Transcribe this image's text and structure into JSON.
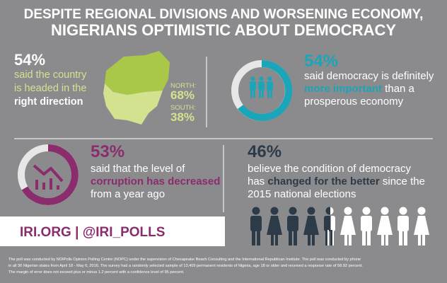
{
  "header": {
    "title_lines": [
      "DESPITE REGIONAL DIVISIONS AND WORSENING ECONOMY,",
      "NIGERIANS OPTIMISTIC ABOUT DEMOCRACY"
    ]
  },
  "panels": [
    {
      "stat": "54%",
      "lines": [
        [
          {
            "text": "said the country"
          }
        ],
        [
          {
            "text": "is headed in the"
          }
        ],
        [
          {
            "text": "right direction",
            "accent": true
          }
        ]
      ],
      "regions": [
        {
          "label": "NORTH:",
          "value": "68%"
        },
        {
          "label": "SOUTH:",
          "value": "38%"
        }
      ]
    },
    {
      "stat": "54%",
      "lines": [
        [
          {
            "text": "said democracy is definitely"
          }
        ],
        [
          {
            "text": "more important",
            "accent": true
          },
          {
            "text": " than a"
          }
        ],
        [
          {
            "text": "prosperous economy"
          }
        ]
      ]
    },
    {
      "stat": "53%",
      "lines": [
        [
          {
            "text": "said that the level of"
          }
        ],
        [
          {
            "text": "corruption has decreased",
            "accent": true
          }
        ],
        [
          {
            "text": "from a year ago"
          }
        ]
      ]
    },
    {
      "stat": "46%",
      "lines": [
        [
          {
            "text": "believe the condition of democracy"
          }
        ],
        [
          {
            "text": "has "
          },
          {
            "text": "changed for the better",
            "accent": true
          },
          {
            "text": " since the"
          }
        ],
        [
          {
            "text": "2015 national elections"
          }
        ]
      ]
    }
  ],
  "footer": {
    "links": "IRI.ORG | @IRI_POLLS",
    "note_lines": [
      "The poll was conducted by NOIPolls Opinion Polling Centre (NOPC) under the supervision of Chesapeake Beach Consulting and the International Republican Institute. The poll was conducted by phone",
      "in all 36 Nigerian states from April 18 - May 6, 2016. The survey had a randomly selected sample of 13,409 permanent residents of Nigeria, age 18 or older and received a response rate of 58.92 percent.",
      "The margin of error does not exceed plus or minus 1.2 percent with a confidence level of 95 percent."
    ]
  }
}
